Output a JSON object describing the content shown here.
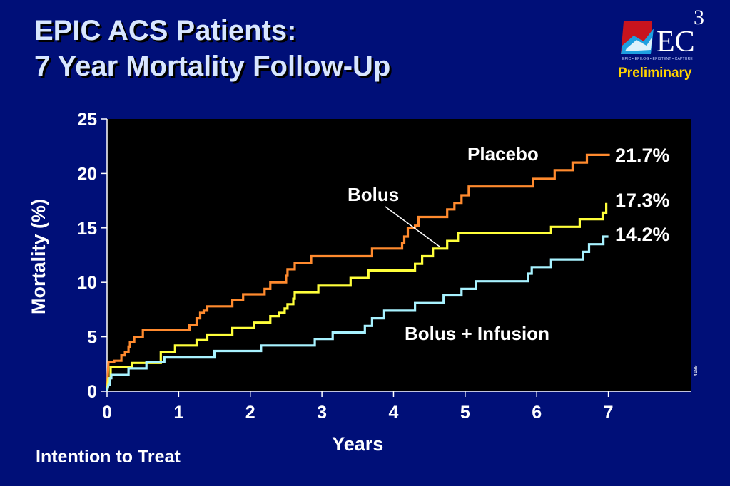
{
  "slide": {
    "title_line1": "EPIC ACS Patients:",
    "title_line2": "7 Year Mortality Follow-Up",
    "status_label": "Preliminary",
    "footer_note": "Intention to Treat",
    "figure_number": "4189"
  },
  "logo": {
    "text": "EC",
    "superscript": "3",
    "tagline": "EPIC • EPILOG • EPISTENT • CAPTURE"
  },
  "colors": {
    "background": "#000f78",
    "plot_background": "#000000",
    "placebo": "#ff8a2e",
    "bolus": "#ffff3a",
    "bolus_infusion": "#a8f2ff",
    "preliminary": "#ffd200",
    "title": "#d8e6ff"
  },
  "chart_data": {
    "type": "line",
    "step": true,
    "xlabel": "Years",
    "ylabel": "Mortality (%)",
    "xlim": [
      0,
      8.15
    ],
    "ylim": [
      0,
      25
    ],
    "xticks": [
      "0",
      "1",
      "2",
      "3",
      "4",
      "5",
      "6",
      "7"
    ],
    "yticks": [
      "0",
      "5",
      "10",
      "15",
      "20",
      "25"
    ],
    "grid": false,
    "legend": "direct labels",
    "series": [
      {
        "name": "Placebo",
        "end_label": "21.7%",
        "color": "#ff8a2e",
        "points": [
          [
            0,
            0
          ],
          [
            0.02,
            2.7
          ],
          [
            0.1,
            2.7
          ],
          [
            0.1,
            2.8
          ],
          [
            0.2,
            2.8
          ],
          [
            0.2,
            3.3
          ],
          [
            0.25,
            3.3
          ],
          [
            0.25,
            3.6
          ],
          [
            0.3,
            3.6
          ],
          [
            0.3,
            4.1
          ],
          [
            0.32,
            4.1
          ],
          [
            0.32,
            4.5
          ],
          [
            0.38,
            4.5
          ],
          [
            0.38,
            5.0
          ],
          [
            0.5,
            5.0
          ],
          [
            0.5,
            5.6
          ],
          [
            1.15,
            5.6
          ],
          [
            1.15,
            6.1
          ],
          [
            1.25,
            6.1
          ],
          [
            1.25,
            6.7
          ],
          [
            1.3,
            6.7
          ],
          [
            1.3,
            7.2
          ],
          [
            1.35,
            7.2
          ],
          [
            1.35,
            7.4
          ],
          [
            1.4,
            7.4
          ],
          [
            1.4,
            7.8
          ],
          [
            1.75,
            7.8
          ],
          [
            1.75,
            8.4
          ],
          [
            1.9,
            8.4
          ],
          [
            1.9,
            8.9
          ],
          [
            2.2,
            8.9
          ],
          [
            2.2,
            9.4
          ],
          [
            2.28,
            9.4
          ],
          [
            2.28,
            10.0
          ],
          [
            2.5,
            10.0
          ],
          [
            2.5,
            10.6
          ],
          [
            2.52,
            10.6
          ],
          [
            2.52,
            11.2
          ],
          [
            2.62,
            11.2
          ],
          [
            2.62,
            11.8
          ],
          [
            2.85,
            11.8
          ],
          [
            2.85,
            12.4
          ],
          [
            3.7,
            12.4
          ],
          [
            3.7,
            13.1
          ],
          [
            4.12,
            13.1
          ],
          [
            4.12,
            13.6
          ],
          [
            4.15,
            13.6
          ],
          [
            4.15,
            14.2
          ],
          [
            4.2,
            14.2
          ],
          [
            4.2,
            15.0
          ],
          [
            4.3,
            15.0
          ],
          [
            4.3,
            15.2
          ],
          [
            4.35,
            15.2
          ],
          [
            4.35,
            16.0
          ],
          [
            4.75,
            16.0
          ],
          [
            4.75,
            16.7
          ],
          [
            4.85,
            16.7
          ],
          [
            4.85,
            17.3
          ],
          [
            4.95,
            17.3
          ],
          [
            4.95,
            18.0
          ],
          [
            5.05,
            18.0
          ],
          [
            5.05,
            18.8
          ],
          [
            5.95,
            18.8
          ],
          [
            5.95,
            19.5
          ],
          [
            6.25,
            19.5
          ],
          [
            6.25,
            20.3
          ],
          [
            6.5,
            20.3
          ],
          [
            6.5,
            21.0
          ],
          [
            6.7,
            21.0
          ],
          [
            6.7,
            21.7
          ],
          [
            7.02,
            21.7
          ]
        ]
      },
      {
        "name": "Bolus",
        "end_label": "17.3%",
        "color": "#ffff3a",
        "points": [
          [
            0,
            0
          ],
          [
            0.02,
            1.2
          ],
          [
            0.05,
            1.2
          ],
          [
            0.05,
            2.2
          ],
          [
            0.35,
            2.2
          ],
          [
            0.35,
            2.6
          ],
          [
            0.75,
            2.6
          ],
          [
            0.75,
            3.6
          ],
          [
            0.95,
            3.6
          ],
          [
            0.95,
            4.2
          ],
          [
            1.25,
            4.2
          ],
          [
            1.25,
            4.7
          ],
          [
            1.4,
            4.7
          ],
          [
            1.4,
            5.2
          ],
          [
            1.75,
            5.2
          ],
          [
            1.75,
            5.8
          ],
          [
            2.05,
            5.8
          ],
          [
            2.05,
            6.3
          ],
          [
            2.28,
            6.3
          ],
          [
            2.28,
            6.9
          ],
          [
            2.4,
            6.9
          ],
          [
            2.4,
            7.2
          ],
          [
            2.48,
            7.2
          ],
          [
            2.48,
            7.6
          ],
          [
            2.52,
            7.6
          ],
          [
            2.52,
            8.0
          ],
          [
            2.6,
            8.0
          ],
          [
            2.6,
            8.5
          ],
          [
            2.62,
            8.5
          ],
          [
            2.62,
            9.1
          ],
          [
            2.95,
            9.1
          ],
          [
            2.95,
            9.7
          ],
          [
            3.4,
            9.7
          ],
          [
            3.4,
            10.4
          ],
          [
            3.65,
            10.4
          ],
          [
            3.65,
            11.1
          ],
          [
            4.3,
            11.1
          ],
          [
            4.3,
            11.7
          ],
          [
            4.4,
            11.7
          ],
          [
            4.4,
            12.4
          ],
          [
            4.55,
            12.4
          ],
          [
            4.55,
            13.1
          ],
          [
            4.75,
            13.1
          ],
          [
            4.75,
            13.8
          ],
          [
            4.9,
            13.8
          ],
          [
            4.9,
            14.5
          ],
          [
            6.2,
            14.5
          ],
          [
            6.2,
            15.1
          ],
          [
            6.6,
            15.1
          ],
          [
            6.6,
            15.8
          ],
          [
            6.92,
            15.8
          ],
          [
            6.92,
            16.4
          ],
          [
            6.97,
            16.4
          ],
          [
            6.97,
            17.3
          ]
        ]
      },
      {
        "name": "Bolus + Infusion",
        "end_label": "14.2%",
        "color": "#a8f2ff",
        "points": [
          [
            0,
            0
          ],
          [
            0.02,
            0.6
          ],
          [
            0.04,
            0.6
          ],
          [
            0.04,
            1.2
          ],
          [
            0.06,
            1.2
          ],
          [
            0.06,
            1.5
          ],
          [
            0.3,
            1.5
          ],
          [
            0.3,
            2.1
          ],
          [
            0.55,
            2.1
          ],
          [
            0.55,
            2.7
          ],
          [
            0.8,
            2.7
          ],
          [
            0.8,
            3.1
          ],
          [
            1.5,
            3.1
          ],
          [
            1.5,
            3.7
          ],
          [
            2.15,
            3.7
          ],
          [
            2.15,
            4.2
          ],
          [
            2.9,
            4.2
          ],
          [
            2.9,
            4.8
          ],
          [
            3.15,
            4.8
          ],
          [
            3.15,
            5.4
          ],
          [
            3.6,
            5.4
          ],
          [
            3.6,
            6.0
          ],
          [
            3.7,
            6.0
          ],
          [
            3.7,
            6.7
          ],
          [
            3.87,
            6.7
          ],
          [
            3.87,
            7.4
          ],
          [
            4.3,
            7.4
          ],
          [
            4.3,
            8.1
          ],
          [
            4.7,
            8.1
          ],
          [
            4.7,
            8.8
          ],
          [
            4.95,
            8.8
          ],
          [
            4.95,
            9.4
          ],
          [
            5.15,
            9.4
          ],
          [
            5.15,
            10.1
          ],
          [
            5.88,
            10.1
          ],
          [
            5.88,
            10.8
          ],
          [
            5.93,
            10.8
          ],
          [
            5.93,
            11.4
          ],
          [
            6.2,
            11.4
          ],
          [
            6.2,
            12.1
          ],
          [
            6.65,
            12.1
          ],
          [
            6.65,
            12.8
          ],
          [
            6.73,
            12.8
          ],
          [
            6.73,
            13.5
          ],
          [
            6.93,
            13.5
          ],
          [
            6.93,
            14.2
          ],
          [
            7.0,
            14.2
          ]
        ]
      }
    ]
  }
}
